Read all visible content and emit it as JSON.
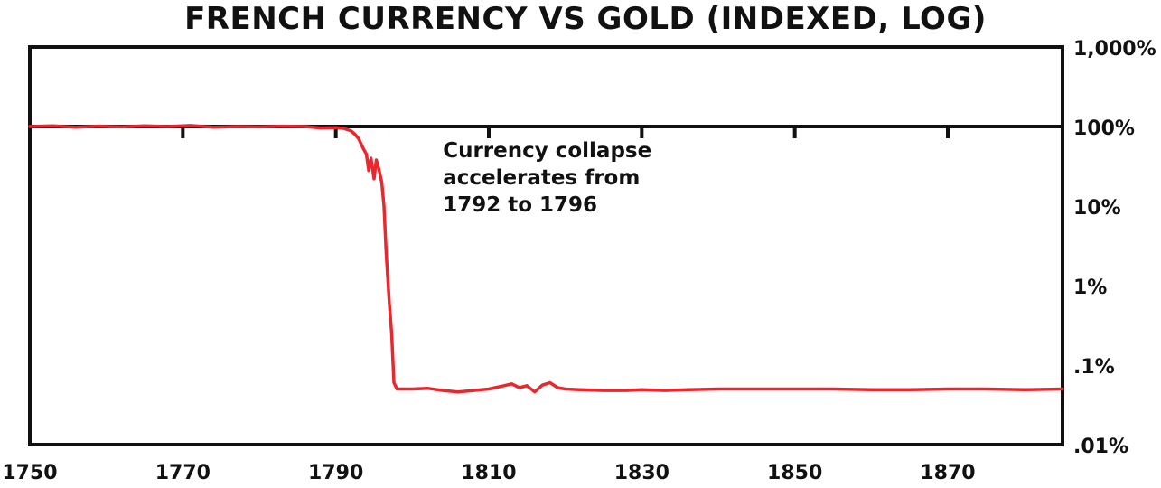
{
  "chart_data": {
    "type": "line",
    "title": "FRENCH CURRENCY VS GOLD (INDEXED, LOG)",
    "xlabel": "",
    "ylabel": "",
    "xlim": [
      1750,
      1885
    ],
    "ylim": [
      0.01,
      1000
    ],
    "y_scale": "log",
    "x_ticks": [
      1750,
      1770,
      1790,
      1810,
      1830,
      1850,
      1870
    ],
    "x_tick_labels": [
      "1750",
      "1770",
      "1790",
      "1810",
      "1830",
      "1850",
      "1870"
    ],
    "y_ticks": [
      1000,
      100,
      10,
      1,
      0.1,
      0.01
    ],
    "y_tick_labels": [
      "1,000%",
      "100%",
      "10%",
      "1%",
      ".1%",
      ".01%"
    ],
    "reference_line_y": 100,
    "grid": false,
    "legend": "none",
    "line_color": "#e8282e",
    "series": [
      {
        "x": [
          1750,
          1753,
          1756,
          1759,
          1762,
          1765,
          1768,
          1771,
          1774,
          1777,
          1780,
          1783,
          1786,
          1788,
          1790,
          1791,
          1792,
          1792.5,
          1793,
          1793.5,
          1794,
          1794.3,
          1794.6,
          1795,
          1795.3,
          1795.6,
          1796,
          1796.3,
          1796.6,
          1797,
          1797.3,
          1797.6,
          1798,
          1800,
          1802,
          1804,
          1806,
          1808,
          1810,
          1812,
          1813,
          1814,
          1815,
          1816,
          1817,
          1818,
          1819,
          1820,
          1822,
          1825,
          1828,
          1830,
          1833,
          1836,
          1840,
          1845,
          1850,
          1855,
          1860,
          1865,
          1870,
          1875,
          1880,
          1885
        ],
        "y": [
          100,
          102,
          98,
          101,
          99,
          102,
          100,
          103,
          98,
          100,
          99,
          101,
          100,
          96,
          97,
          95,
          88,
          80,
          70,
          55,
          45,
          28,
          40,
          22,
          38,
          30,
          20,
          10,
          2.5,
          0.6,
          0.25,
          0.06,
          0.05,
          0.05,
          0.051,
          0.048,
          0.046,
          0.048,
          0.05,
          0.055,
          0.058,
          0.052,
          0.055,
          0.046,
          0.056,
          0.06,
          0.052,
          0.05,
          0.049,
          0.048,
          0.048,
          0.049,
          0.048,
          0.049,
          0.05,
          0.05,
          0.05,
          0.05,
          0.049,
          0.049,
          0.05,
          0.05,
          0.049,
          0.05
        ]
      }
    ],
    "annotation": {
      "lines": [
        "Currency collapse",
        "accelerates from",
        "1792 to 1796"
      ],
      "x": 1804,
      "y": 23
    }
  }
}
